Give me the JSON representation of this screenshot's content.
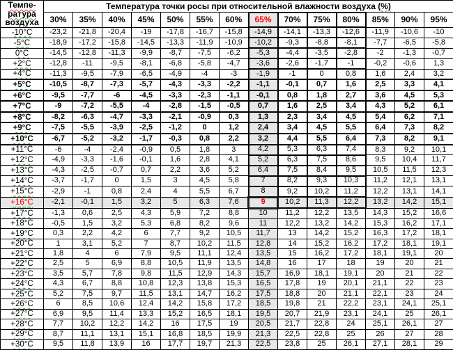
{
  "colors": {
    "highlight_red": "#ff0000",
    "shade_gray": "#e7e7e7",
    "grid_black": "#000000"
  },
  "header": {
    "corner": [
      "Темпе-",
      "ратура",
      "воздуха"
    ],
    "title_main": "Температура точки росы при относительной влажности воздуха ",
    "title_suffix": "(%)",
    "columns": [
      "30%",
      "35%",
      "40%",
      "45%",
      "50%",
      "55%",
      "60%",
      "65%",
      "70%",
      "75%",
      "80%",
      "85%",
      "90%",
      "95%"
    ]
  },
  "emphasis": {
    "bold_rows": [
      "+5°C",
      "+6°C",
      "+7°C",
      "+8°C",
      "+9°C",
      "+10°C"
    ],
    "shaded_row": "+16°C",
    "shaded_column_index": 7,
    "boxed_columns": [
      7,
      8,
      9,
      10
    ],
    "boxed_until_row_index": 16,
    "red_cell": {
      "row": "+16°C",
      "column": "65%",
      "value": "9"
    }
  },
  "rows": [
    {
      "temp": "-10°C",
      "values": [
        "-23,2",
        "-21,8",
        "-20,4",
        "-19",
        "-17,8",
        "-16,7",
        "-15,8",
        "-14,9",
        "-14,1",
        "-13,3",
        "-12,6",
        "-11,9",
        "-10,6",
        "-10"
      ]
    },
    {
      "temp": "-5°C",
      "values": [
        "-18,9",
        "-17,2",
        "-15,8",
        "-14,5",
        "-13,3",
        "-11,9",
        "-10,9",
        "-10,2",
        "-9,3",
        "-8,8",
        "-8,1",
        "-7,7",
        "-6,5",
        "-5,8"
      ]
    },
    {
      "temp": "0°C",
      "values": [
        "-14,5",
        "-12,8",
        "-11,3",
        "-9,9",
        "-8,7",
        "-7,5",
        "-6,2",
        "-5,3",
        "-4,4",
        "-3,5",
        "-2,8",
        "-2",
        "-1,3",
        "-0,7"
      ]
    },
    {
      "temp": "+2°C",
      "values": [
        "-12,8",
        "-11",
        "-9,5",
        "-8,1",
        "-6,8",
        "-5,8",
        "-4,7",
        "-3,6",
        "-2,6",
        "-1,7",
        "-1",
        "-0,2",
        "-0,6",
        "1,3"
      ]
    },
    {
      "temp": "+4°C",
      "values": [
        "-11,3",
        "-9,5",
        "-7,9",
        "-6,5",
        "-4,9",
        "-4",
        "-3",
        "-1,9",
        "-1",
        "0",
        "0,8",
        "1,6",
        "2,4",
        "3,2"
      ]
    },
    {
      "temp": "+5°C",
      "values": [
        "-10,5",
        "-8,7",
        "-7,3",
        "-5,7",
        "-4,3",
        "-3,3",
        "-2,2",
        "-1,1",
        "-0,1",
        "0,7",
        "1,6",
        "2,5",
        "3,3",
        "4,1"
      ]
    },
    {
      "temp": "+6°C",
      "values": [
        "-9,5",
        "-7,7",
        "-6",
        "-4,5",
        "-3,3",
        "-2,3",
        "-1,1",
        "-0,1",
        "0,8",
        "1,8",
        "2,7",
        "3,6",
        "4,5",
        "5,3"
      ]
    },
    {
      "temp": "+7°C",
      "values": [
        "-9",
        "-7,2",
        "-5,5",
        "-4",
        "-2,8",
        "-1,5",
        "-0,5",
        "0,7",
        "1,6",
        "2,5",
        "3,4",
        "4,3",
        "5,2",
        "6,1"
      ]
    },
    {
      "temp": "+8°C",
      "values": [
        "-8,2",
        "-6,3",
        "-4,7",
        "-3,3",
        "-2,1",
        "-0,9",
        "0,3",
        "1,3",
        "2,3",
        "3,4",
        "4,5",
        "5,4",
        "6,2",
        "7,1"
      ]
    },
    {
      "temp": "+9°C",
      "values": [
        "-7,5",
        "-5,5",
        "-3,9",
        "-2,5",
        "-1,2",
        "0",
        "1,2",
        "2,4",
        "3,4",
        "4,5",
        "5,5",
        "6,4",
        "7,3",
        "8,2"
      ]
    },
    {
      "temp": "+10°C",
      "values": [
        "-6,7",
        "-5,2",
        "-3,2",
        "-1,7",
        "-0,3",
        "0,8",
        "2,2",
        "3,2",
        "4,4",
        "5,5",
        "6,4",
        "7,3",
        "8,2",
        "9,1"
      ]
    },
    {
      "temp": "+11°C",
      "values": [
        "-6",
        "-4",
        "-2,4",
        "-0,9",
        "0,5",
        "1,8",
        "3",
        "4,2",
        "5,3",
        "6,3",
        "7,4",
        "8,3",
        "9,2",
        "10,1"
      ]
    },
    {
      "temp": "+12°C",
      "values": [
        "-4,9",
        "-3,3",
        "-1,6",
        "-0,1",
        "1,6",
        "2,8",
        "4,1",
        "5,2",
        "6,3",
        "7,5",
        "8,6",
        "9,5",
        "10,4",
        "11,7"
      ]
    },
    {
      "temp": "+13°C",
      "values": [
        "-4,3",
        "-2,5",
        "-0,7",
        "0,7",
        "2,2",
        "3,6",
        "5,2",
        "6,4",
        "7,5",
        "8,4",
        "9,5",
        "10,5",
        "11,5",
        "12,3"
      ]
    },
    {
      "temp": "+14°C",
      "values": [
        "-3,7",
        "-1,7",
        "0",
        "1,5",
        "3",
        "4,5",
        "5,8",
        "7",
        "8,2",
        "9,3",
        "10,3",
        "11,2",
        "12,1",
        "13,1"
      ]
    },
    {
      "temp": "+15°C",
      "values": [
        "-2,9",
        "-1",
        "0,8",
        "2,4",
        "4",
        "5,5",
        "6,7",
        "8",
        "9,2",
        "10,2",
        "11,2",
        "12,2",
        "13,1",
        "14,1"
      ]
    },
    {
      "temp": "+16°C",
      "values": [
        "-2,1",
        "-0,1",
        "1,5",
        "3,2",
        "5",
        "6,3",
        "7,6",
        "9",
        "10,2",
        "11,3",
        "12,2",
        "13,2",
        "14,2",
        "15,1"
      ]
    },
    {
      "temp": "+17°C",
      "values": [
        "-1,3",
        "0,6",
        "2,5",
        "4,3",
        "5,9",
        "7,2",
        "8,8",
        "10",
        "11,2",
        "12,2",
        "13,5",
        "14,3",
        "15,2",
        "16,6"
      ]
    },
    {
      "temp": "+18°C",
      "values": [
        "-0,5",
        "1,5",
        "3,2",
        "5,3",
        "6,8",
        "8,2",
        "9,6",
        "11",
        "12,2",
        "13,2",
        "14,2",
        "15,3",
        "16,2",
        "17,1"
      ]
    },
    {
      "temp": "+19°C",
      "values": [
        "0,3",
        "2,2",
        "4,2",
        "6",
        "7,7",
        "9,2",
        "10,5",
        "11,7",
        "13",
        "14,2",
        "15,2",
        "16,3",
        "17,2",
        "18,1"
      ]
    },
    {
      "temp": "+20°C",
      "values": [
        "1",
        "3,1",
        "5,2",
        "7",
        "8,7",
        "10,2",
        "11,5",
        "12,8",
        "14",
        "15,2",
        "16,2",
        "17,2",
        "18,1",
        "19,1"
      ]
    },
    {
      "temp": "+21°C",
      "values": [
        "1,8",
        "4",
        "6",
        "7,9",
        "9,5",
        "11,1",
        "12,4",
        "13,5",
        "15",
        "16,2",
        "17,2",
        "18,1",
        "19,1",
        "20"
      ]
    },
    {
      "temp": "+22°C",
      "values": [
        "2,5",
        "5",
        "6,9",
        "8,8",
        "10,5",
        "11,9",
        "13,5",
        "14,8",
        "16",
        "17",
        "18",
        "19",
        "20",
        "21"
      ]
    },
    {
      "temp": "+23°C",
      "values": [
        "3,5",
        "5,7",
        "7,8",
        "9,8",
        "11,5",
        "12,9",
        "14,3",
        "15,7",
        "16,9",
        "18,1",
        "19,1",
        "20",
        "21",
        "22"
      ]
    },
    {
      "temp": "+24°C",
      "values": [
        "4,3",
        "6,7",
        "8,8",
        "10,8",
        "12,3",
        "13,8",
        "15,3",
        "16,5",
        "17,8",
        "19",
        "20,1",
        "21,1",
        "22",
        "23"
      ]
    },
    {
      "temp": "+25°C",
      "values": [
        "5,2",
        "7,5",
        "9,7",
        "11,5",
        "13,1",
        "14,7",
        "16,2",
        "17,5",
        "18,8",
        "20",
        "21,1",
        "22,1",
        "23",
        "24"
      ]
    },
    {
      "temp": "+26°C",
      "values": [
        "6",
        "8,5",
        "10,6",
        "12,4",
        "14,2",
        "15,8",
        "17,2",
        "18,5",
        "19,8",
        "21",
        "22,2",
        "23,1",
        "24,1",
        "25,1"
      ]
    },
    {
      "temp": "+27°C",
      "values": [
        "6,9",
        "9,5",
        "11,4",
        "13,3",
        "15,2",
        "16,5",
        "18,1",
        "19,5",
        "20,7",
        "21,9",
        "23,1",
        "24,1",
        "25",
        "26,1"
      ]
    },
    {
      "temp": "+28°C",
      "values": [
        "7,7",
        "10,2",
        "12,2",
        "14,2",
        "16",
        "17,5",
        "19",
        "20,5",
        "21,7",
        "22,8",
        "24",
        "25,1",
        "26,1",
        "27"
      ]
    },
    {
      "temp": "+29°C",
      "values": [
        "8,7",
        "11,1",
        "13,1",
        "15,1",
        "16,8",
        "18,5",
        "19,9",
        "21,3",
        "22,5",
        "22,8",
        "25",
        "26",
        "27",
        "28"
      ]
    },
    {
      "temp": "+30°C",
      "values": [
        "9,5",
        "11,8",
        "13,9",
        "16",
        "17,7",
        "19,7",
        "21,3",
        "22,5",
        "23,8",
        "25",
        "26,1",
        "27,1",
        "28,1",
        "29"
      ]
    }
  ]
}
